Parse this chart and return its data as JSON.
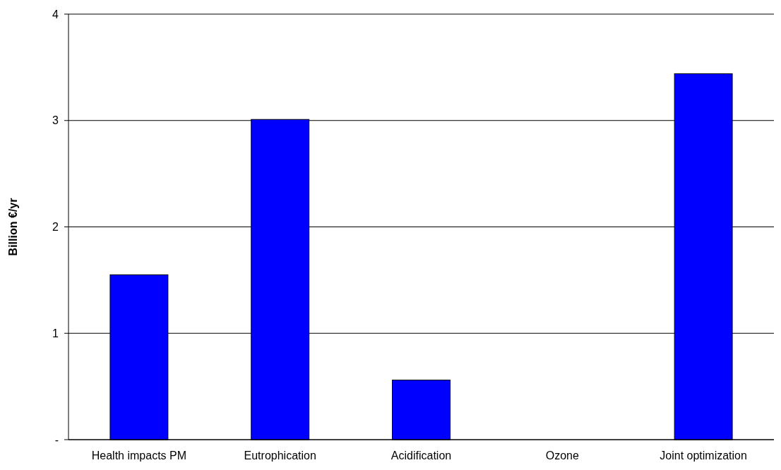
{
  "chart_data": {
    "type": "bar",
    "ylabel": "Billion €/yr",
    "categories": [
      "Health impacts PM",
      "Eutrophication",
      "Acidification",
      "Ozone",
      "Joint optimization"
    ],
    "values": [
      1.55,
      3.01,
      0.56,
      0,
      3.44
    ],
    "color": "#0000ff",
    "ylim": [
      0,
      4
    ],
    "yticks": [
      {
        "value": 0,
        "label": "-"
      },
      1,
      2,
      3,
      4
    ],
    "grid": "y"
  }
}
